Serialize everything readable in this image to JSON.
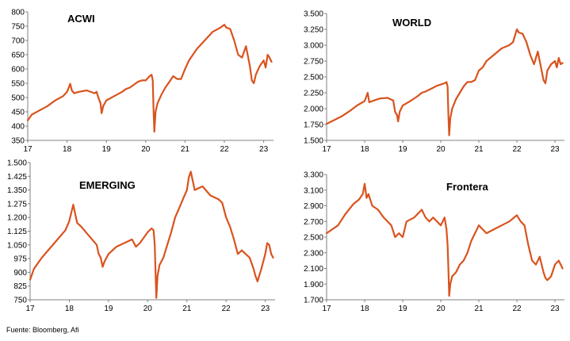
{
  "source": "Fuente: Bloomberg, Afi",
  "colors": {
    "series": "#d9531e",
    "axis": "#808080"
  },
  "chart_data": [
    {
      "type": "line",
      "title": "ACWI",
      "ylim": [
        350,
        800
      ],
      "yticks": [
        "350",
        "400",
        "450",
        "500",
        "550",
        "600",
        "650",
        "700",
        "750",
        "800"
      ],
      "xticks": [
        {
          "label": "17",
          "t": 0
        },
        {
          "label": "18",
          "t": 1
        },
        {
          "label": "19",
          "t": 2
        },
        {
          "label": "20",
          "t": 3
        },
        {
          "label": "21",
          "t": 4
        },
        {
          "label": "22",
          "t": 5
        },
        {
          "label": "23",
          "t": 6
        }
      ],
      "xlim": [
        0,
        6.25
      ],
      "series": [
        {
          "t": [
            0,
            0.1,
            0.3,
            0.5,
            0.7,
            0.9,
            1.0,
            1.08,
            1.12,
            1.18,
            1.3,
            1.5,
            1.7,
            1.75,
            1.8,
            1.85,
            1.88,
            1.92,
            2.0,
            2.2,
            2.4,
            2.5,
            2.6,
            2.7,
            2.8,
            2.9,
            3.0,
            3.1,
            3.15,
            3.18,
            3.2,
            3.22,
            3.25,
            3.3,
            3.4,
            3.5,
            3.6,
            3.7,
            3.8,
            3.9,
            4.0,
            4.1,
            4.2,
            4.3,
            4.5,
            4.7,
            4.9,
            5.0,
            5.05,
            5.15,
            5.25,
            5.35,
            5.45,
            5.55,
            5.65,
            5.7,
            5.75,
            5.8,
            5.9,
            6.0,
            6.05,
            6.1,
            6.15,
            6.2
          ],
          "values": [
            420,
            440,
            455,
            470,
            490,
            505,
            520,
            548,
            525,
            515,
            520,
            525,
            515,
            520,
            498,
            480,
            445,
            470,
            490,
            505,
            520,
            530,
            535,
            545,
            555,
            560,
            560,
            575,
            580,
            560,
            455,
            380,
            450,
            480,
            510,
            535,
            555,
            575,
            565,
            565,
            600,
            630,
            650,
            670,
            700,
            730,
            745,
            755,
            745,
            740,
            700,
            650,
            640,
            680,
            610,
            560,
            550,
            580,
            610,
            630,
            605,
            650,
            640,
            625
          ]
        }
      ]
    },
    {
      "type": "line",
      "title": "WORLD",
      "ylim": [
        1500,
        3500
      ],
      "yticks": [
        "1.500",
        "1.750",
        "2.000",
        "2.250",
        "2.500",
        "2.750",
        "3.000",
        "3.250",
        "3.500"
      ],
      "xticks": [
        {
          "label": "17",
          "t": 0
        },
        {
          "label": "18",
          "t": 1
        },
        {
          "label": "19",
          "t": 2
        },
        {
          "label": "20",
          "t": 3
        },
        {
          "label": "21",
          "t": 4
        },
        {
          "label": "22",
          "t": 5
        },
        {
          "label": "23",
          "t": 6
        }
      ],
      "xlim": [
        0,
        6.25
      ],
      "series": [
        {
          "t": [
            0,
            0.2,
            0.4,
            0.6,
            0.8,
            1.0,
            1.08,
            1.12,
            1.2,
            1.4,
            1.6,
            1.75,
            1.8,
            1.85,
            1.88,
            1.92,
            2.0,
            2.2,
            2.4,
            2.5,
            2.6,
            2.7,
            2.8,
            2.9,
            3.0,
            3.1,
            3.15,
            3.18,
            3.2,
            3.22,
            3.25,
            3.3,
            3.4,
            3.5,
            3.6,
            3.7,
            3.8,
            3.9,
            4.0,
            4.1,
            4.2,
            4.4,
            4.6,
            4.8,
            4.9,
            5.0,
            5.05,
            5.15,
            5.25,
            5.35,
            5.45,
            5.55,
            5.65,
            5.7,
            5.75,
            5.8,
            5.9,
            6.0,
            6.05,
            6.1,
            6.15,
            6.2
          ],
          "values": [
            1760,
            1820,
            1880,
            1960,
            2050,
            2120,
            2250,
            2100,
            2120,
            2160,
            2170,
            2130,
            1950,
            1900,
            1800,
            1950,
            2050,
            2120,
            2200,
            2250,
            2270,
            2300,
            2330,
            2360,
            2380,
            2400,
            2420,
            2350,
            1900,
            1580,
            1850,
            2000,
            2150,
            2250,
            2350,
            2420,
            2420,
            2450,
            2600,
            2650,
            2750,
            2850,
            2950,
            3000,
            3050,
            3250,
            3200,
            3180,
            3050,
            2850,
            2700,
            2900,
            2600,
            2450,
            2400,
            2600,
            2700,
            2750,
            2650,
            2800,
            2700,
            2720
          ]
        }
      ]
    },
    {
      "type": "line",
      "title": "EMERGING",
      "ylim": [
        750,
        1500
      ],
      "yticks": [
        "750",
        "825",
        "900",
        "975",
        "1.050",
        "1.125",
        "1.200",
        "1.275",
        "1.350",
        "1.425",
        "1.500"
      ],
      "xticks": [
        {
          "label": "17",
          "t": 0
        },
        {
          "label": "18",
          "t": 1
        },
        {
          "label": "19",
          "t": 2
        },
        {
          "label": "20",
          "t": 3
        },
        {
          "label": "21",
          "t": 4
        },
        {
          "label": "22",
          "t": 5
        },
        {
          "label": "23",
          "t": 6
        }
      ],
      "xlim": [
        0,
        6.25
      ],
      "series": [
        {
          "t": [
            0,
            0.1,
            0.3,
            0.5,
            0.7,
            0.9,
            1.0,
            1.1,
            1.2,
            1.3,
            1.5,
            1.7,
            1.75,
            1.8,
            1.85,
            1.9,
            2.0,
            2.2,
            2.4,
            2.5,
            2.6,
            2.7,
            2.8,
            2.9,
            3.0,
            3.1,
            3.15,
            3.18,
            3.2,
            3.22,
            3.25,
            3.3,
            3.4,
            3.5,
            3.6,
            3.7,
            3.8,
            3.9,
            4.0,
            4.05,
            4.1,
            4.2,
            4.4,
            4.6,
            4.8,
            4.9,
            5.0,
            5.1,
            5.2,
            5.3,
            5.4,
            5.5,
            5.6,
            5.7,
            5.75,
            5.8,
            5.9,
            6.0,
            6.05,
            6.1,
            6.15,
            6.2
          ],
          "values": [
            860,
            920,
            980,
            1030,
            1080,
            1130,
            1180,
            1270,
            1170,
            1150,
            1100,
            1050,
            1000,
            980,
            930,
            960,
            1000,
            1040,
            1060,
            1070,
            1080,
            1040,
            1060,
            1090,
            1120,
            1140,
            1130,
            1050,
            900,
            760,
            880,
            940,
            980,
            1050,
            1120,
            1200,
            1250,
            1300,
            1350,
            1420,
            1450,
            1350,
            1370,
            1320,
            1300,
            1280,
            1200,
            1150,
            1080,
            1000,
            1020,
            1000,
            980,
            920,
            880,
            850,
            920,
            1000,
            1060,
            1050,
            1000,
            980
          ]
        }
      ]
    },
    {
      "type": "line",
      "title": "Frontera",
      "ylim": [
        1700,
        3300
      ],
      "yticks": [
        "1.700",
        "1.900",
        "2.100",
        "2.300",
        "2.500",
        "2.700",
        "2.900",
        "3.100",
        "3.300"
      ],
      "xticks": [
        {
          "label": "17",
          "t": 0
        },
        {
          "label": "18",
          "t": 1
        },
        {
          "label": "19",
          "t": 2
        },
        {
          "label": "20",
          "t": 3
        },
        {
          "label": "21",
          "t": 4
        },
        {
          "label": "22",
          "t": 5
        },
        {
          "label": "23",
          "t": 6
        }
      ],
      "xlim": [
        0,
        6.25
      ],
      "series": [
        {
          "t": [
            0,
            0.15,
            0.3,
            0.5,
            0.7,
            0.85,
            0.95,
            1.0,
            1.05,
            1.1,
            1.2,
            1.35,
            1.5,
            1.6,
            1.7,
            1.8,
            1.9,
            2.0,
            2.1,
            2.3,
            2.5,
            2.6,
            2.7,
            2.8,
            2.9,
            3.0,
            3.05,
            3.1,
            3.15,
            3.18,
            3.2,
            3.22,
            3.25,
            3.3,
            3.4,
            3.5,
            3.6,
            3.7,
            3.8,
            3.9,
            4.0,
            4.1,
            4.2,
            4.4,
            4.6,
            4.8,
            5.0,
            5.1,
            5.2,
            5.3,
            5.4,
            5.5,
            5.6,
            5.7,
            5.75,
            5.8,
            5.9,
            6.0,
            6.1,
            6.2
          ],
          "values": [
            2550,
            2600,
            2650,
            2800,
            2920,
            2980,
            3050,
            3180,
            3000,
            3050,
            2900,
            2850,
            2750,
            2700,
            2650,
            2500,
            2550,
            2500,
            2700,
            2750,
            2850,
            2750,
            2700,
            2750,
            2700,
            2650,
            2700,
            2750,
            2600,
            2400,
            2100,
            1750,
            1900,
            2000,
            2050,
            2150,
            2200,
            2300,
            2450,
            2550,
            2650,
            2600,
            2550,
            2600,
            2650,
            2700,
            2780,
            2700,
            2650,
            2400,
            2200,
            2150,
            2250,
            2050,
            1980,
            1950,
            2000,
            2150,
            2200,
            2100
          ]
        }
      ]
    }
  ]
}
